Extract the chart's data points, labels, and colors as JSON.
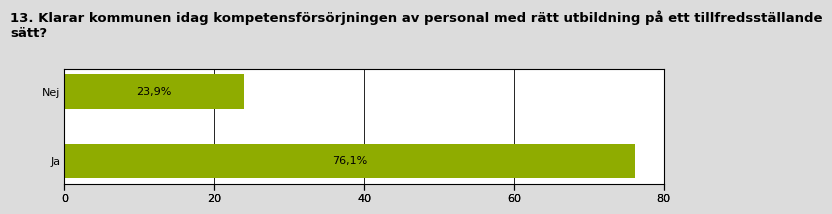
{
  "title_line1": "13. Klarar kommunen idag kompetensförsörjningen av personal med rätt utbildning på ett tillfredsställande",
  "title_line2": "sätt?",
  "categories": [
    "Ja",
    "Nej"
  ],
  "values": [
    76.1,
    23.9
  ],
  "labels": [
    "76,1%",
    "23,9%"
  ],
  "bar_color": "#8fac00",
  "xlim": [
    0,
    80
  ],
  "xticks": [
    0,
    20,
    40,
    60,
    80
  ],
  "title_fontsize": 9.5,
  "label_fontsize": 8,
  "tick_fontsize": 8,
  "ytick_fontsize": 8,
  "background_color": "#dcdcdc",
  "plot_bg_color": "#ffffff",
  "grid_color": "#000000",
  "bar_height": 0.5
}
